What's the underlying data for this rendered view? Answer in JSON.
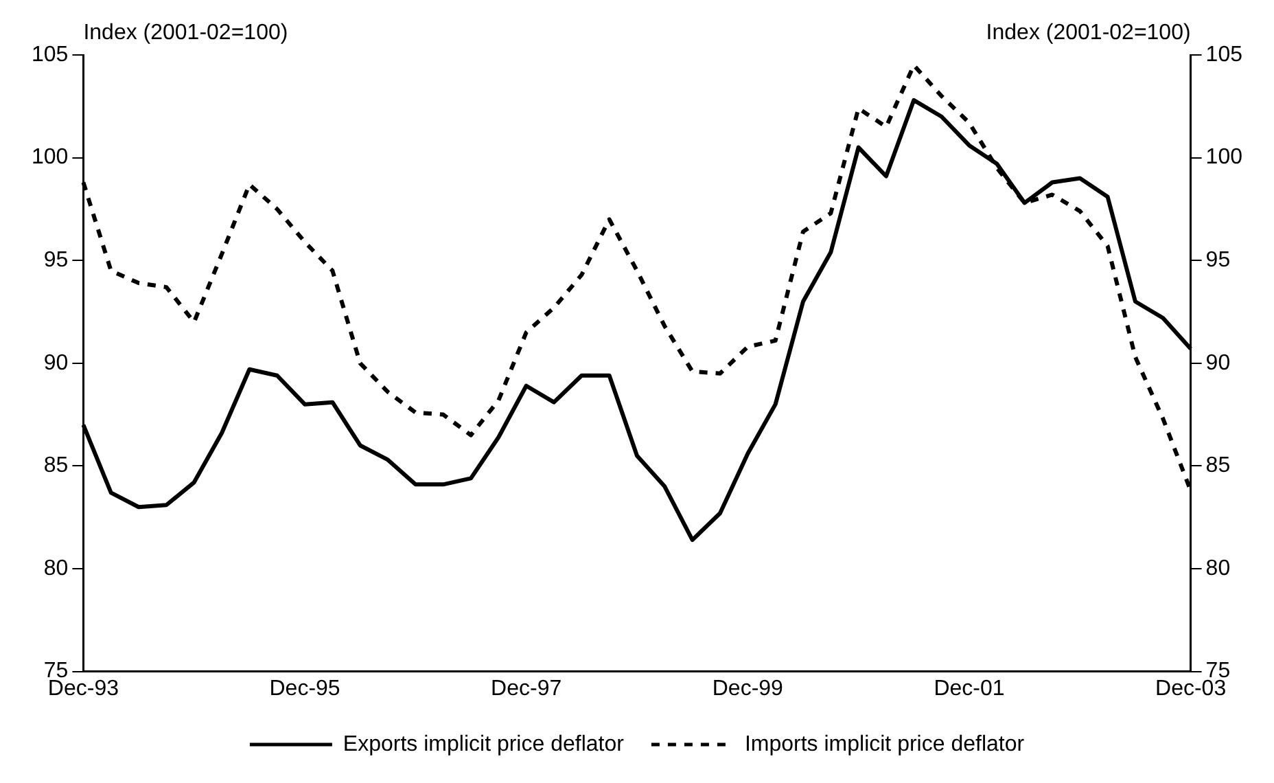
{
  "chart_data": {
    "type": "line",
    "categories": [
      "Dec-93",
      null,
      null,
      null,
      null,
      null,
      null,
      null,
      "Dec-95",
      null,
      null,
      null,
      null,
      null,
      null,
      null,
      "Dec-97",
      null,
      null,
      null,
      null,
      null,
      null,
      null,
      "Dec-99",
      null,
      null,
      null,
      null,
      null,
      null,
      null,
      "Dec-01",
      null,
      null,
      null,
      null,
      null,
      null,
      null,
      "Dec-03"
    ],
    "series": [
      {
        "name": "Exports implicit price deflator",
        "color": "#000000",
        "line_style": "solid",
        "values": [
          87.0,
          83.7,
          83.0,
          83.1,
          84.2,
          86.6,
          89.7,
          89.4,
          88.0,
          88.1,
          86.0,
          85.3,
          84.1,
          84.1,
          84.4,
          86.4,
          88.9,
          88.1,
          89.4,
          89.4,
          85.5,
          84.0,
          81.4,
          82.7,
          85.6,
          88.0,
          93.0,
          95.4,
          100.5,
          99.1,
          102.8,
          102.0,
          100.6,
          99.7,
          97.8,
          98.8,
          99.0,
          98.1,
          93.0,
          92.2,
          90.7
        ]
      },
      {
        "name": "Imports implicit price deflator",
        "color": "#000000",
        "line_style": "dotted",
        "values": [
          98.8,
          94.5,
          93.9,
          93.7,
          92.0,
          95.3,
          98.7,
          97.5,
          95.9,
          94.5,
          90.0,
          88.6,
          87.6,
          87.5,
          86.5,
          88.2,
          91.5,
          92.7,
          94.3,
          97.0,
          94.5,
          91.8,
          89.6,
          89.5,
          90.8,
          91.1,
          96.4,
          97.3,
          102.4,
          101.5,
          104.5,
          103.0,
          101.7,
          99.5,
          97.8,
          98.2,
          97.4,
          95.7,
          90.3,
          87.3,
          83.8
        ]
      }
    ],
    "ylabel": "Index (2001-02=100)",
    "y2label": "Index (2001-02=100)",
    "ylim": [
      75,
      105
    ],
    "yticks": [
      75,
      80,
      85,
      90,
      95,
      100,
      105
    ],
    "y2lim": [
      75,
      105
    ],
    "y2ticks": [
      75,
      80,
      85,
      90,
      95,
      100,
      105
    ],
    "grid": false,
    "legend": "bottom",
    "marker": "none"
  }
}
